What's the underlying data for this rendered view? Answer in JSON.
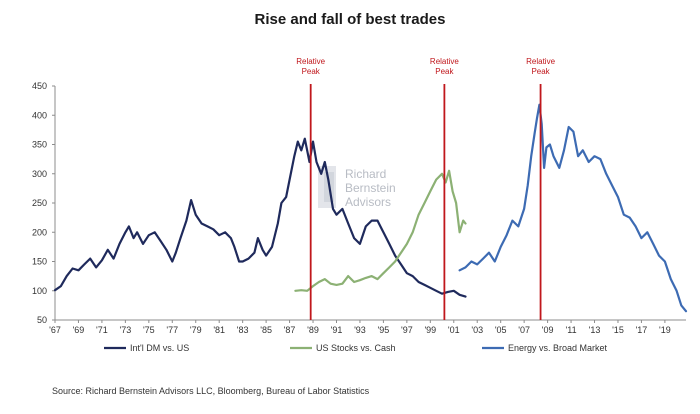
{
  "chart_data": {
    "type": "line",
    "title": "Rise and fall of best trades",
    "source": "Source: Richard Bernstein Advisors LLC, Bloomberg, Bureau of Labor Statistics",
    "watermark": [
      "Richard",
      "Bernstein",
      "Advisors"
    ],
    "xlim": [
      1967,
      2020.8
    ],
    "ylim": [
      50,
      450
    ],
    "yticks": [
      50,
      100,
      150,
      200,
      250,
      300,
      350,
      400,
      450
    ],
    "xticks": [
      {
        "value": 1967,
        "label": "'67"
      },
      {
        "value": 1969,
        "label": "'69"
      },
      {
        "value": 1971,
        "label": "'71"
      },
      {
        "value": 1973,
        "label": "'73"
      },
      {
        "value": 1975,
        "label": "'75"
      },
      {
        "value": 1977,
        "label": "'77"
      },
      {
        "value": 1979,
        "label": "'79"
      },
      {
        "value": 1981,
        "label": "'81"
      },
      {
        "value": 1983,
        "label": "'83"
      },
      {
        "value": 1985,
        "label": "'85"
      },
      {
        "value": 1987,
        "label": "'87"
      },
      {
        "value": 1989,
        "label": "'89"
      },
      {
        "value": 1991,
        "label": "'91"
      },
      {
        "value": 1993,
        "label": "'93"
      },
      {
        "value": 1995,
        "label": "'95"
      },
      {
        "value": 1997,
        "label": "'97"
      },
      {
        "value": 1999,
        "label": "'99"
      },
      {
        "value": 2001,
        "label": "'01"
      },
      {
        "value": 2003,
        "label": "'03"
      },
      {
        "value": 2005,
        "label": "'05"
      },
      {
        "value": 2007,
        "label": "'07"
      },
      {
        "value": 2009,
        "label": "'09"
      },
      {
        "value": 2011,
        "label": "'11"
      },
      {
        "value": 2013,
        "label": "'13"
      },
      {
        "value": 2015,
        "label": "'15"
      },
      {
        "value": 2017,
        "label": "'17"
      },
      {
        "value": 2019,
        "label": "'19"
      }
    ],
    "annotations": [
      {
        "x": 1988.8,
        "lines": [
          "Relative",
          "Peak"
        ]
      },
      {
        "x": 2000.2,
        "lines": [
          "Relative",
          "Peak"
        ]
      },
      {
        "x": 2008.4,
        "lines": [
          "Relative",
          "Peak"
        ]
      }
    ],
    "legend_position": "bottom",
    "colors": {
      "axis": "#8c8c8c",
      "annotation": "#c0171c"
    },
    "series": [
      {
        "name": "Int'l DM vs. US",
        "color": "#1f2a5c",
        "points": [
          [
            1967.0,
            101
          ],
          [
            1967.5,
            108
          ],
          [
            1968.0,
            125
          ],
          [
            1968.5,
            138
          ],
          [
            1969.0,
            135
          ],
          [
            1969.5,
            145
          ],
          [
            1970.0,
            155
          ],
          [
            1970.5,
            140
          ],
          [
            1971.0,
            152
          ],
          [
            1971.5,
            170
          ],
          [
            1972.0,
            155
          ],
          [
            1972.5,
            180
          ],
          [
            1973.0,
            200
          ],
          [
            1973.3,
            210
          ],
          [
            1973.7,
            190
          ],
          [
            1974.0,
            200
          ],
          [
            1974.5,
            180
          ],
          [
            1975.0,
            195
          ],
          [
            1975.5,
            200
          ],
          [
            1976.0,
            185
          ],
          [
            1976.5,
            170
          ],
          [
            1977.0,
            150
          ],
          [
            1977.3,
            165
          ],
          [
            1977.7,
            190
          ],
          [
            1978.2,
            220
          ],
          [
            1978.6,
            255
          ],
          [
            1979.0,
            230
          ],
          [
            1979.5,
            215
          ],
          [
            1980.0,
            210
          ],
          [
            1980.5,
            205
          ],
          [
            1981.0,
            195
          ],
          [
            1981.5,
            200
          ],
          [
            1982.0,
            190
          ],
          [
            1982.3,
            175
          ],
          [
            1982.7,
            150
          ],
          [
            1983.0,
            150
          ],
          [
            1983.5,
            155
          ],
          [
            1984.0,
            165
          ],
          [
            1984.3,
            190
          ],
          [
            1984.7,
            170
          ],
          [
            1985.0,
            160
          ],
          [
            1985.5,
            175
          ],
          [
            1986.0,
            215
          ],
          [
            1986.3,
            250
          ],
          [
            1986.7,
            260
          ],
          [
            1987.0,
            290
          ],
          [
            1987.4,
            330
          ],
          [
            1987.7,
            355
          ],
          [
            1988.0,
            340
          ],
          [
            1988.3,
            360
          ],
          [
            1988.7,
            320
          ],
          [
            1989.0,
            355
          ],
          [
            1989.3,
            320
          ],
          [
            1989.7,
            300
          ],
          [
            1990.0,
            320
          ],
          [
            1990.3,
            290
          ],
          [
            1990.7,
            240
          ],
          [
            1991.0,
            230
          ],
          [
            1991.5,
            240
          ],
          [
            1992.0,
            215
          ],
          [
            1992.5,
            190
          ],
          [
            1993.0,
            180
          ],
          [
            1993.5,
            210
          ],
          [
            1994.0,
            220
          ],
          [
            1994.5,
            220
          ],
          [
            1995.0,
            200
          ],
          [
            1995.5,
            180
          ],
          [
            1996.0,
            160
          ],
          [
            1996.5,
            145
          ],
          [
            1997.0,
            130
          ],
          [
            1997.5,
            125
          ],
          [
            1998.0,
            115
          ],
          [
            1998.5,
            110
          ],
          [
            1999.0,
            105
          ],
          [
            1999.5,
            100
          ],
          [
            2000.0,
            95
          ],
          [
            2000.5,
            98
          ],
          [
            2001.0,
            100
          ],
          [
            2001.5,
            93
          ],
          [
            2002.0,
            90
          ]
        ]
      },
      {
        "name": "US Stocks vs. Cash",
        "color": "#8cb174",
        "points": [
          [
            1987.5,
            100
          ],
          [
            1988.0,
            101
          ],
          [
            1988.5,
            100
          ],
          [
            1989.0,
            108
          ],
          [
            1989.5,
            115
          ],
          [
            1990.0,
            120
          ],
          [
            1990.5,
            112
          ],
          [
            1991.0,
            110
          ],
          [
            1991.5,
            112
          ],
          [
            1992.0,
            125
          ],
          [
            1992.5,
            115
          ],
          [
            1993.0,
            118
          ],
          [
            1993.5,
            122
          ],
          [
            1994.0,
            125
          ],
          [
            1994.5,
            120
          ],
          [
            1995.0,
            130
          ],
          [
            1995.5,
            140
          ],
          [
            1996.0,
            150
          ],
          [
            1996.5,
            165
          ],
          [
            1997.0,
            180
          ],
          [
            1997.5,
            200
          ],
          [
            1998.0,
            230
          ],
          [
            1998.5,
            250
          ],
          [
            1999.0,
            270
          ],
          [
            1999.5,
            290
          ],
          [
            2000.0,
            300
          ],
          [
            2000.3,
            285
          ],
          [
            2000.6,
            305
          ],
          [
            2000.9,
            270
          ],
          [
            2001.2,
            250
          ],
          [
            2001.5,
            200
          ],
          [
            2001.8,
            220
          ],
          [
            2002.0,
            215
          ]
        ]
      },
      {
        "name": "Energy vs. Broad Market",
        "color": "#3d6bb3",
        "points": [
          [
            2001.5,
            135
          ],
          [
            2002.0,
            140
          ],
          [
            2002.5,
            150
          ],
          [
            2003.0,
            145
          ],
          [
            2003.5,
            155
          ],
          [
            2004.0,
            165
          ],
          [
            2004.5,
            150
          ],
          [
            2005.0,
            175
          ],
          [
            2005.5,
            195
          ],
          [
            2006.0,
            220
          ],
          [
            2006.5,
            210
          ],
          [
            2007.0,
            240
          ],
          [
            2007.3,
            280
          ],
          [
            2007.6,
            330
          ],
          [
            2007.9,
            370
          ],
          [
            2008.1,
            395
          ],
          [
            2008.3,
            418
          ],
          [
            2008.5,
            385
          ],
          [
            2008.7,
            310
          ],
          [
            2008.9,
            345
          ],
          [
            2009.2,
            350
          ],
          [
            2009.5,
            330
          ],
          [
            2010.0,
            310
          ],
          [
            2010.4,
            340
          ],
          [
            2010.8,
            380
          ],
          [
            2011.2,
            372
          ],
          [
            2011.6,
            330
          ],
          [
            2012.0,
            340
          ],
          [
            2012.5,
            320
          ],
          [
            2013.0,
            330
          ],
          [
            2013.5,
            325
          ],
          [
            2014.0,
            300
          ],
          [
            2014.5,
            280
          ],
          [
            2015.0,
            260
          ],
          [
            2015.5,
            230
          ],
          [
            2016.0,
            225
          ],
          [
            2016.5,
            210
          ],
          [
            2017.0,
            190
          ],
          [
            2017.5,
            200
          ],
          [
            2018.0,
            180
          ],
          [
            2018.5,
            160
          ],
          [
            2019.0,
            150
          ],
          [
            2019.5,
            120
          ],
          [
            2020.0,
            100
          ],
          [
            2020.4,
            75
          ],
          [
            2020.8,
            65
          ]
        ]
      }
    ]
  }
}
